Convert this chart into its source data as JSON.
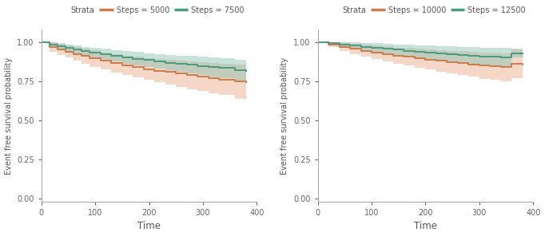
{
  "orange_color": "#CD7B4A",
  "green_color": "#4A9B7F",
  "orange_fill_color": "#E8A882",
  "green_fill_color": "#82C0B0",
  "bg_color": "#FFFFFF",
  "ylabel": "Event free survival probability",
  "xlabel": "Time",
  "xlim": [
    0,
    400
  ],
  "ylim": [
    -0.02,
    1.08
  ],
  "yticks": [
    0.0,
    0.25,
    0.5,
    0.75,
    1.0
  ],
  "xticks": [
    0,
    100,
    200,
    300,
    400
  ],
  "legend_title": "Strata",
  "plot1": {
    "legend1": "Steps = 5000",
    "legend2": "Steps = 7500",
    "orange_x": [
      0,
      15,
      30,
      45,
      60,
      75,
      90,
      110,
      130,
      150,
      170,
      190,
      210,
      230,
      250,
      270,
      290,
      310,
      330,
      360,
      380
    ],
    "orange_y": [
      1.0,
      0.97,
      0.955,
      0.94,
      0.925,
      0.91,
      0.895,
      0.88,
      0.865,
      0.852,
      0.84,
      0.828,
      0.818,
      0.808,
      0.798,
      0.788,
      0.778,
      0.769,
      0.76,
      0.748,
      0.742
    ],
    "orange_lo": [
      1.0,
      0.94,
      0.92,
      0.9,
      0.882,
      0.862,
      0.843,
      0.825,
      0.806,
      0.79,
      0.773,
      0.758,
      0.744,
      0.729,
      0.715,
      0.7,
      0.686,
      0.673,
      0.661,
      0.638,
      0.628
    ],
    "orange_hi": [
      1.0,
      1.0,
      0.99,
      0.98,
      0.968,
      0.958,
      0.947,
      0.935,
      0.924,
      0.914,
      0.907,
      0.898,
      0.892,
      0.887,
      0.881,
      0.876,
      0.87,
      0.865,
      0.859,
      0.858,
      0.856
    ],
    "green_x": [
      0,
      15,
      30,
      45,
      60,
      75,
      90,
      110,
      130,
      150,
      170,
      190,
      210,
      230,
      250,
      270,
      290,
      310,
      330,
      360,
      380
    ],
    "green_y": [
      1.0,
      0.985,
      0.973,
      0.962,
      0.952,
      0.942,
      0.932,
      0.922,
      0.912,
      0.903,
      0.894,
      0.885,
      0.877,
      0.869,
      0.862,
      0.855,
      0.848,
      0.841,
      0.834,
      0.82,
      0.814
    ],
    "green_lo": [
      1.0,
      0.97,
      0.954,
      0.94,
      0.927,
      0.914,
      0.901,
      0.888,
      0.875,
      0.863,
      0.852,
      0.84,
      0.829,
      0.819,
      0.809,
      0.799,
      0.789,
      0.78,
      0.771,
      0.752,
      0.745
    ],
    "green_hi": [
      1.0,
      1.0,
      0.992,
      0.984,
      0.977,
      0.97,
      0.963,
      0.956,
      0.949,
      0.943,
      0.936,
      0.93,
      0.925,
      0.919,
      0.915,
      0.911,
      0.907,
      0.902,
      0.897,
      0.888,
      0.883
    ]
  },
  "plot2": {
    "legend1": "Steps = 10000",
    "legend2": "Steps = 12500",
    "orange_x": [
      0,
      20,
      40,
      60,
      80,
      100,
      120,
      140,
      160,
      180,
      200,
      220,
      240,
      260,
      280,
      300,
      320,
      340,
      360,
      380
    ],
    "orange_y": [
      1.0,
      0.985,
      0.97,
      0.957,
      0.945,
      0.934,
      0.924,
      0.914,
      0.905,
      0.896,
      0.888,
      0.88,
      0.872,
      0.865,
      0.858,
      0.851,
      0.845,
      0.839,
      0.862,
      0.856
    ],
    "orange_lo": [
      1.0,
      0.968,
      0.943,
      0.924,
      0.907,
      0.891,
      0.876,
      0.862,
      0.849,
      0.836,
      0.824,
      0.812,
      0.8,
      0.789,
      0.778,
      0.767,
      0.757,
      0.748,
      0.769,
      0.76
    ],
    "orange_hi": [
      1.0,
      1.0,
      0.997,
      0.99,
      0.983,
      0.977,
      0.972,
      0.966,
      0.961,
      0.956,
      0.952,
      0.948,
      0.944,
      0.941,
      0.938,
      0.935,
      0.933,
      0.93,
      0.955,
      0.952
    ],
    "green_x": [
      0,
      20,
      40,
      60,
      80,
      100,
      120,
      140,
      160,
      180,
      200,
      220,
      240,
      260,
      280,
      300,
      320,
      340,
      360,
      380
    ],
    "green_y": [
      1.0,
      0.993,
      0.985,
      0.978,
      0.971,
      0.964,
      0.957,
      0.951,
      0.945,
      0.94,
      0.934,
      0.929,
      0.924,
      0.919,
      0.914,
      0.909,
      0.905,
      0.901,
      0.93,
      0.926
    ],
    "green_lo": [
      1.0,
      0.984,
      0.966,
      0.956,
      0.946,
      0.936,
      0.926,
      0.917,
      0.908,
      0.9,
      0.891,
      0.883,
      0.876,
      0.868,
      0.861,
      0.854,
      0.847,
      0.841,
      0.9,
      0.895
    ],
    "green_hi": [
      1.0,
      1.0,
      1.0,
      1.0,
      0.996,
      0.992,
      0.988,
      0.985,
      0.982,
      0.98,
      0.977,
      0.975,
      0.972,
      0.97,
      0.967,
      0.964,
      0.963,
      0.961,
      0.96,
      0.957
    ]
  }
}
